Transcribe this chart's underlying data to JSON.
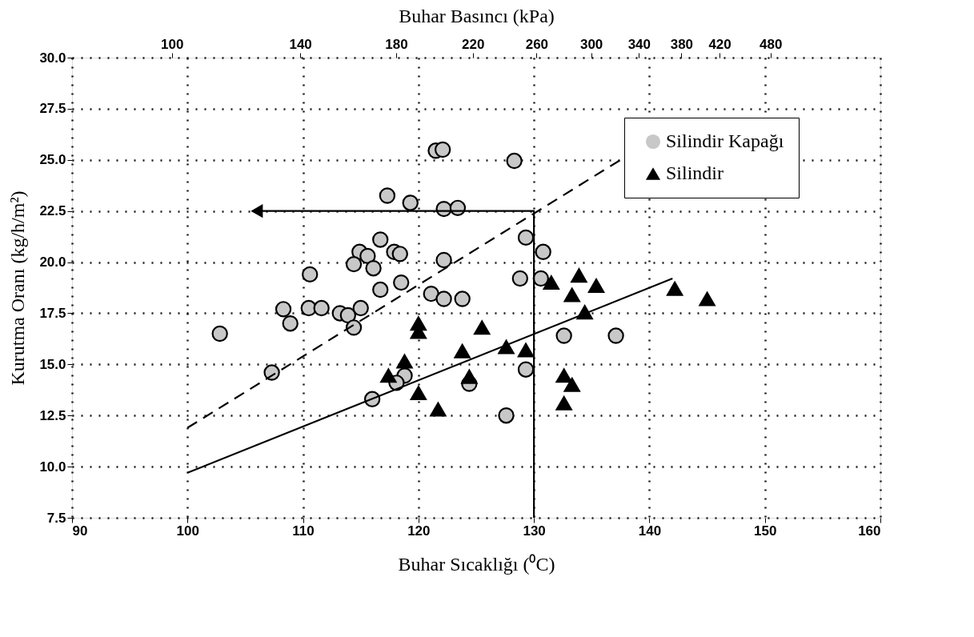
{
  "chart_data": {
    "type": "scatter",
    "xlabel": "Buhar Sıcaklığı (⁰C)",
    "ylabel": "Kurutma Oranı (kg/h/m²)",
    "x2label": "Buhar Basıncı (kPa)",
    "xlim": [
      90,
      160
    ],
    "xticks": [
      90,
      100,
      110,
      120,
      130,
      140,
      150,
      160
    ],
    "ylim": [
      7.5,
      30
    ],
    "yticks": [
      {
        "value": 7.5,
        "label": "7.5"
      },
      {
        "value": 10,
        "label": "10.0"
      },
      {
        "value": 12.5,
        "label": "12.5"
      },
      {
        "value": 15,
        "label": "15.0"
      },
      {
        "value": 17.5,
        "label": "17.5"
      },
      {
        "value": 20,
        "label": "20.0"
      },
      {
        "value": 22.5,
        "label": "22.5"
      },
      {
        "value": 25,
        "label": "25.0"
      },
      {
        "value": 27.5,
        "label": "27.5"
      },
      {
        "value": 30,
        "label": "30.0"
      }
    ],
    "x2lim": [
      77,
      640
    ],
    "log": "x2",
    "x2ticks": [
      100,
      140,
      180,
      220,
      260,
      300,
      340,
      380,
      420,
      480
    ],
    "grid": true,
    "legend": "top right",
    "series": [
      {
        "name": "Silindir Kapağı",
        "marker": "circle",
        "color": "#c8c8c8",
        "x": [
          117.3,
          119.3,
          116.7,
          114.9,
          115.6,
          117.9,
          118.4,
          114.4,
          116.1,
          110.6,
          118.5,
          116.7,
          108.3,
          110.5,
          111.6,
          113.2,
          113.9,
          115.0,
          108.9,
          114.4,
          102.8,
          107.3,
          116.0,
          118.8,
          118.1,
          121.5,
          122.1,
          128.3,
          122.2,
          123.4,
          129.3,
          130.8,
          122.2,
          128.8,
          130.6,
          121.1,
          122.2,
          123.8,
          132.6,
          137.1,
          129.3,
          124.4,
          127.6
        ],
        "values": [
          23.25,
          22.9,
          21.1,
          20.5,
          20.3,
          20.5,
          20.4,
          19.9,
          19.7,
          19.4,
          19.0,
          18.65,
          17.7,
          17.75,
          17.75,
          17.5,
          17.4,
          17.75,
          17.0,
          16.8,
          16.5,
          14.6,
          13.3,
          14.45,
          14.1,
          25.45,
          25.5,
          24.95,
          22.6,
          22.65,
          21.2,
          20.5,
          20.1,
          19.2,
          19.2,
          18.45,
          18.2,
          18.2,
          16.4,
          16.4,
          14.75,
          14.05,
          12.5
        ]
      },
      {
        "name": "Silindir",
        "marker": "triangle",
        "color": "#000000",
        "x": [
          120.0,
          120.0,
          125.5,
          123.8,
          127.6,
          129.3,
          118.8,
          117.4,
          120.0,
          121.7,
          124.4,
          131.5,
          133.9,
          133.3,
          135.4,
          134.4,
          132.6,
          133.3,
          132.6,
          142.2,
          145.0
        ],
        "values": [
          17.0,
          16.6,
          16.8,
          15.65,
          15.85,
          15.7,
          15.15,
          14.45,
          13.6,
          12.8,
          14.4,
          19.0,
          19.35,
          18.4,
          18.85,
          17.55,
          14.45,
          14.0,
          13.1,
          18.7,
          18.2
        ]
      },
      {
        "type": "line",
        "line_style": "solid",
        "color": "#000000",
        "x": [
          100,
          142
        ],
        "values": [
          9.7,
          19.2
        ]
      },
      {
        "type": "line",
        "line_style": "dashed",
        "color": "#000000",
        "x": [
          100,
          137.5
        ],
        "values": [
          11.9,
          25.0
        ]
      },
      {
        "type": "line",
        "line_style": "solid",
        "color": "#000000",
        "x": [
          106,
          130,
          130
        ],
        "values": [
          22.5,
          22.5,
          7.5
        ]
      }
    ]
  }
}
